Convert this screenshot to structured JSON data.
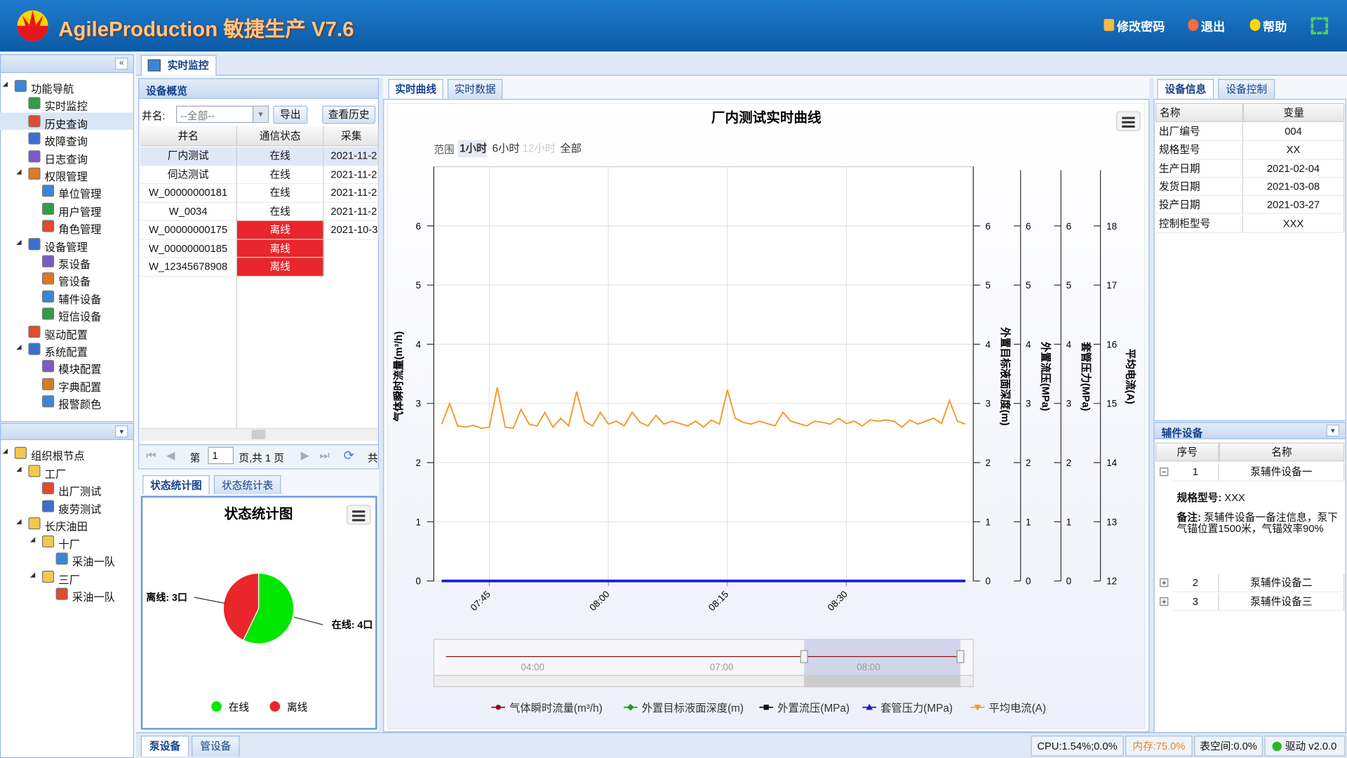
{
  "header": {
    "title": "AgileProduction 敏捷生产 V7.6",
    "actions": [
      "修改密码",
      "退出",
      "帮助"
    ]
  },
  "main_tab": "实时监控",
  "nav": {
    "items": [
      {
        "label": "功能导航",
        "level": 0
      },
      {
        "label": "实时监控",
        "level": 1
      },
      {
        "label": "历史查询",
        "level": 1,
        "selected": true
      },
      {
        "label": "故障查询",
        "level": 1
      },
      {
        "label": "日志查询",
        "level": 1
      },
      {
        "label": "权限管理",
        "level": 1
      },
      {
        "label": "单位管理",
        "level": 2
      },
      {
        "label": "用户管理",
        "level": 2
      },
      {
        "label": "角色管理",
        "level": 2
      },
      {
        "label": "设备管理",
        "level": 1
      },
      {
        "label": "泵设备",
        "level": 2
      },
      {
        "label": "管设备",
        "level": 2
      },
      {
        "label": "辅件设备",
        "level": 2
      },
      {
        "label": "短信设备",
        "level": 2
      },
      {
        "label": "驱动配置",
        "level": 1
      },
      {
        "label": "系统配置",
        "level": 1
      },
      {
        "label": "模块配置",
        "level": 2
      },
      {
        "label": "字典配置",
        "level": 2
      },
      {
        "label": "报警颜色",
        "level": 2
      }
    ]
  },
  "org": {
    "items": [
      {
        "label": "组织根节点",
        "level": 0
      },
      {
        "label": "工厂",
        "level": 1
      },
      {
        "label": "出厂测试",
        "level": 2
      },
      {
        "label": "疲劳测试",
        "level": 2
      },
      {
        "label": "长庆油田",
        "level": 1
      },
      {
        "label": "十厂",
        "level": 2
      },
      {
        "label": "采油一队",
        "level": 3
      },
      {
        "label": "三厂",
        "level": 2
      },
      {
        "label": "采油一队",
        "level": 3
      }
    ]
  },
  "overview": {
    "title": "设备概览",
    "filter_label": "井名:",
    "select": "--全部--",
    "buttons": [
      "导出",
      "查看历史"
    ],
    "columns": [
      "井名",
      "通信状态",
      "采集"
    ],
    "rows": [
      [
        "厂内测试",
        "在线",
        "2021-11-2"
      ],
      [
        "伺达测试",
        "在线",
        "2021-11-2"
      ],
      [
        "W_00000000181",
        "在线",
        "2021-11-2"
      ],
      [
        "W_0034",
        "在线",
        "2021-11-2"
      ],
      [
        "W_00000000175",
        "离线",
        "2021-10-3"
      ],
      [
        "W_00000000185",
        "离线"
      ],
      [
        "W_12345678908",
        "离线"
      ]
    ],
    "pager": {
      "page_label": "第",
      "page": 1,
      "of_label": "页,共 1 页",
      "total_label": "共"
    }
  },
  "stats_tabs": [
    "状态统计图",
    "状态统计表"
  ],
  "center_tabs": [
    "实时曲线",
    "实时数据"
  ],
  "info": {
    "tabs": [
      "设备信息",
      "设备控制"
    ],
    "columns": [
      "名称",
      "变量"
    ],
    "rows": [
      [
        "出厂编号",
        "004"
      ],
      [
        "规格型号",
        "XX"
      ],
      [
        "生产日期",
        "2021-02-04"
      ],
      [
        "发货日期",
        "2021-03-08"
      ],
      [
        "投产日期",
        "2021-03-27"
      ],
      [
        "控制柜型号",
        "XXX"
      ]
    ]
  },
  "aux": {
    "title": "辅件设备",
    "columns": [
      "序号",
      "名称"
    ],
    "rows": [
      {
        "no": "1",
        "name": "泵辅件设备一",
        "details": [
          {
            "label": "规格型号:",
            "value": "XXX"
          },
          {
            "label": "备注:",
            "value": "泵辅件设备一备注信息，泵下气锚位置1500米，气锚效率90%"
          }
        ]
      },
      {
        "no": "2",
        "name": "泵辅件设备二"
      },
      {
        "no": "3",
        "name": "泵辅件设备三"
      }
    ]
  },
  "bottom_tabs": [
    "泵设备",
    "管设备"
  ],
  "status_bar": [
    "CPU:1.54%;0.0%",
    "内存:75.0%",
    "表空间:0.0%",
    "驱动 v2.0.0"
  ],
  "chart_data": [
    {
      "type": "pie",
      "title": "状态统计图",
      "categories": [
        "在线",
        "离线"
      ],
      "values": [
        4,
        3
      ],
      "value_labels": [
        "在线: 4口",
        "离线: 3口"
      ],
      "colors": [
        "#00e600",
        "#e8262b"
      ]
    },
    {
      "type": "line",
      "title": "厂内测试实时曲线",
      "range_label": "范围",
      "range_buttons": [
        "1小时",
        "6小时",
        "12小时",
        "全部"
      ],
      "x": [
        "07:39",
        "07:40",
        "07:41",
        "07:42",
        "07:43",
        "07:44",
        "07:45",
        "07:46",
        "07:47",
        "07:48",
        "07:49",
        "07:50",
        "07:51",
        "07:52",
        "07:53",
        "07:54",
        "07:55",
        "07:56",
        "07:57",
        "07:58",
        "07:59",
        "08:00",
        "08:01",
        "08:02",
        "08:03",
        "08:04",
        "08:05",
        "08:06",
        "08:07",
        "08:08",
        "08:09",
        "08:10",
        "08:11",
        "08:12",
        "08:13",
        "08:14",
        "08:15",
        "08:16",
        "08:17",
        "08:18",
        "08:19",
        "08:20",
        "08:21",
        "08:22",
        "08:23",
        "08:24",
        "08:25",
        "08:26",
        "08:27",
        "08:28",
        "08:29",
        "08:30",
        "08:31",
        "08:32",
        "08:33",
        "08:34",
        "08:35",
        "08:36",
        "08:37",
        "08:38",
        "08:39",
        "08:40",
        "08:41",
        "08:42",
        "08:43",
        "08:44",
        "08:45"
      ],
      "xlim": [
        "07:38",
        "08:46"
      ],
      "xticks": [
        "07:45",
        "08:00",
        "08:15",
        "08:30"
      ],
      "ylabel": "气体瞬时流量(m³/h)",
      "ylim": [
        0,
        7
      ],
      "yticks": [
        0,
        1,
        2,
        3,
        4,
        5,
        6
      ],
      "y2label": "外置目标液面深度(m)",
      "y2lim": [
        0,
        7
      ],
      "y2ticks": [
        0,
        1,
        2,
        3,
        4,
        5,
        6
      ],
      "y3label": "外置流压(MPa)",
      "y3lim": [
        0,
        7
      ],
      "y3ticks": [
        0,
        1,
        2,
        3,
        4,
        5,
        6
      ],
      "y4label": "套管压力(MPa)",
      "y4lim": [
        0,
        7
      ],
      "y4ticks": [
        0,
        1,
        2,
        3,
        4,
        5,
        6
      ],
      "y5label": "平均电流(A)",
      "y5lim": [
        12,
        19
      ],
      "y5ticks": [
        12,
        13,
        14,
        15,
        16,
        17,
        18
      ],
      "grid": true,
      "navigator_labels": [
        "04:00",
        "07:00",
        "08:00"
      ],
      "series": [
        {
          "name": "气体瞬时流量(m³/h)",
          "color": "#8b1010",
          "axis": "y",
          "values": [
            0,
            0,
            0,
            0,
            0,
            0,
            0,
            0,
            0,
            0,
            0,
            0,
            0,
            0,
            0,
            0,
            0,
            0,
            0,
            0,
            0,
            0,
            0,
            0,
            0,
            0,
            0,
            0,
            0,
            0,
            0,
            0,
            0,
            0,
            0,
            0,
            0,
            0,
            0,
            0,
            0,
            0,
            0,
            0,
            0,
            0,
            0,
            0,
            0,
            0,
            0,
            0,
            0,
            0,
            0,
            0,
            0,
            0,
            0,
            0,
            0,
            0,
            0,
            0,
            0,
            0,
            0
          ]
        },
        {
          "name": "外置目标液面深度(m)",
          "color": "#1e9e1e",
          "axis": "y2",
          "values": [
            0,
            0,
            0,
            0,
            0,
            0,
            0,
            0,
            0,
            0,
            0,
            0,
            0,
            0,
            0,
            0,
            0,
            0,
            0,
            0,
            0,
            0,
            0,
            0,
            0,
            0,
            0,
            0,
            0,
            0,
            0,
            0,
            0,
            0,
            0,
            0,
            0,
            0,
            0,
            0,
            0,
            0,
            0,
            0,
            0,
            0,
            0,
            0,
            0,
            0,
            0,
            0,
            0,
            0,
            0,
            0,
            0,
            0,
            0,
            0,
            0,
            0,
            0,
            0,
            0,
            0,
            0
          ]
        },
        {
          "name": "外置流压(MPa)",
          "color": "#111111",
          "axis": "y3",
          "values": [
            0,
            0,
            0,
            0,
            0,
            0,
            0,
            0,
            0,
            0,
            0,
            0,
            0,
            0,
            0,
            0,
            0,
            0,
            0,
            0,
            0,
            0,
            0,
            0,
            0,
            0,
            0,
            0,
            0,
            0,
            0,
            0,
            0,
            0,
            0,
            0,
            0,
            0,
            0,
            0,
            0,
            0,
            0,
            0,
            0,
            0,
            0,
            0,
            0,
            0,
            0,
            0,
            0,
            0,
            0,
            0,
            0,
            0,
            0,
            0,
            0,
            0,
            0,
            0,
            0,
            0,
            0
          ]
        },
        {
          "name": "套管压力(MPa)",
          "color": "#1a1ad6",
          "axis": "y4",
          "values": [
            0,
            0,
            0,
            0,
            0,
            0,
            0,
            0,
            0,
            0,
            0,
            0,
            0,
            0,
            0,
            0,
            0,
            0,
            0,
            0,
            0,
            0,
            0,
            0,
            0,
            0,
            0,
            0,
            0,
            0,
            0,
            0,
            0,
            0,
            0,
            0,
            0,
            0,
            0,
            0,
            0,
            0,
            0,
            0,
            0,
            0,
            0,
            0,
            0,
            0,
            0,
            0,
            0,
            0,
            0,
            0,
            0,
            0,
            0,
            0,
            0,
            0,
            0,
            0,
            0,
            0,
            0
          ]
        },
        {
          "name": "平均电流(A)",
          "color": "#f29b2c",
          "axis": "y5",
          "values": [
            14.65,
            15.0,
            14.62,
            14.6,
            14.63,
            14.58,
            14.6,
            15.27,
            14.6,
            14.58,
            14.9,
            14.65,
            14.62,
            14.85,
            14.6,
            14.75,
            14.62,
            15.2,
            14.7,
            14.62,
            14.85,
            14.65,
            14.7,
            14.62,
            14.85,
            14.68,
            14.62,
            14.8,
            14.65,
            14.7,
            14.66,
            14.62,
            14.7,
            14.6,
            14.72,
            14.65,
            15.23,
            14.75,
            14.68,
            14.65,
            14.7,
            14.66,
            14.62,
            14.85,
            14.7,
            14.66,
            14.62,
            14.7,
            14.68,
            14.65,
            14.75,
            14.66,
            14.7,
            14.62,
            14.72,
            14.7,
            14.72,
            14.7,
            14.6,
            14.72,
            14.65,
            14.7,
            14.75,
            14.66,
            15.05,
            14.7,
            14.65
          ]
        }
      ]
    }
  ]
}
